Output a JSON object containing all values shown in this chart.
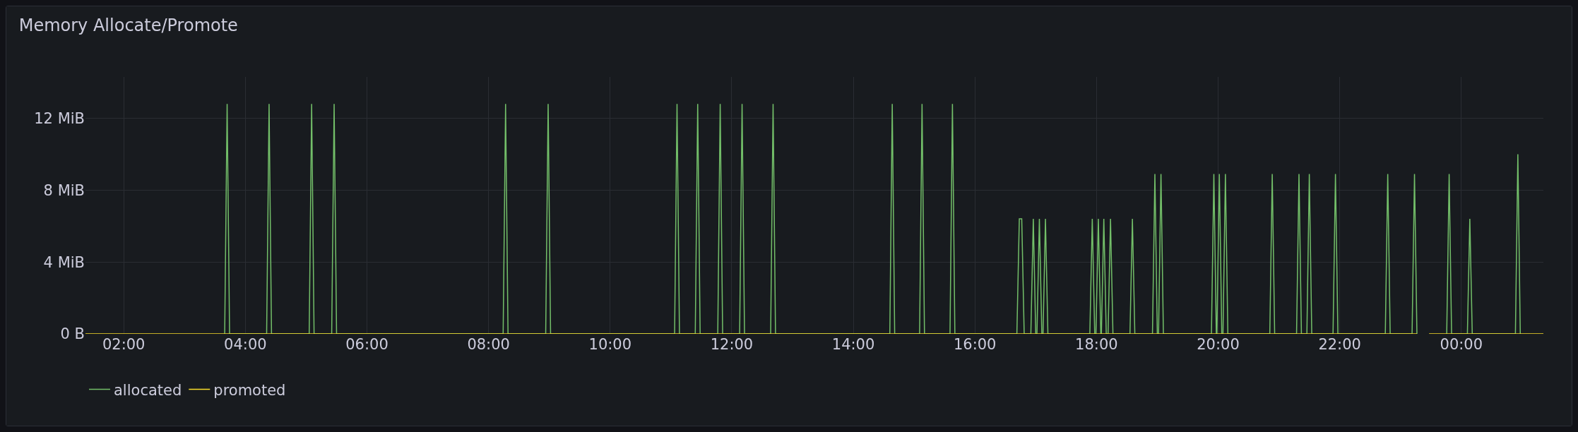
{
  "chart_data": {
    "type": "line",
    "title": "Memory Allocate/Promote",
    "xlim": [
      1.37,
      25.35
    ],
    "xticks": [
      {
        "value": 2,
        "label": "02:00"
      },
      {
        "value": 4,
        "label": "04:00"
      },
      {
        "value": 6,
        "label": "06:00"
      },
      {
        "value": 8,
        "label": "08:00"
      },
      {
        "value": 10,
        "label": "10:00"
      },
      {
        "value": 12,
        "label": "12:00"
      },
      {
        "value": 14,
        "label": "14:00"
      },
      {
        "value": 16,
        "label": "16:00"
      },
      {
        "value": 18,
        "label": "18:00"
      },
      {
        "value": 20,
        "label": "20:00"
      },
      {
        "value": 22,
        "label": "22:00"
      },
      {
        "value": 24,
        "label": "00:00"
      }
    ],
    "ylim": [
      0,
      14.3
    ],
    "yticks": [
      {
        "value": 0,
        "label": "0 B"
      },
      {
        "value": 4,
        "label": "4 MiB"
      },
      {
        "value": 8,
        "label": "8 MiB"
      },
      {
        "value": 12,
        "label": "12 MiB"
      }
    ],
    "grid": true,
    "legend": "bottom left",
    "marker": "none",
    "line_style": "solid",
    "series": [
      {
        "name": "allocated",
        "color": "#73bf69",
        "x": [
          3.66,
          3.7,
          3.74,
          4.35,
          4.39,
          4.43,
          5.05,
          5.09,
          5.13,
          5.42,
          5.46,
          5.5,
          8.24,
          8.28,
          8.32,
          8.94,
          8.98,
          9.02,
          11.06,
          11.1,
          11.14,
          11.4,
          11.44,
          11.48,
          11.77,
          11.81,
          11.85,
          12.13,
          12.17,
          12.21,
          12.64,
          12.68,
          12.72,
          14.6,
          14.64,
          14.68,
          15.09,
          15.13,
          15.17,
          15.59,
          15.63,
          15.67,
          16.69,
          16.73,
          16.77,
          16.81,
          16.92,
          16.96,
          17.0,
          17.02,
          17.06,
          17.1,
          17.12,
          17.16,
          17.2,
          17.89,
          17.93,
          17.97,
          17.99,
          18.03,
          18.07,
          18.08,
          18.12,
          18.16,
          18.19,
          18.23,
          18.27,
          18.55,
          18.59,
          18.63,
          18.92,
          18.96,
          19.0,
          19.02,
          19.06,
          19.1,
          19.89,
          19.93,
          19.97,
          19.98,
          20.02,
          20.06,
          20.08,
          20.12,
          20.16,
          20.85,
          20.89,
          20.93,
          21.29,
          21.33,
          21.37,
          21.46,
          21.5,
          21.54,
          21.89,
          21.93,
          21.97,
          22.75,
          22.79,
          22.83,
          23.19,
          23.23,
          23.27,
          23.38,
          23.76,
          23.8,
          23.84,
          24.1,
          24.14,
          24.18,
          24.89,
          24.93,
          24.97
        ],
        "values": [
          0,
          12.8,
          0,
          0,
          12.8,
          0,
          0,
          12.8,
          0,
          0,
          12.8,
          0,
          0,
          12.8,
          0,
          0,
          12.8,
          0,
          0,
          12.8,
          0,
          0,
          12.8,
          0,
          0,
          12.8,
          0,
          0,
          12.8,
          0,
          0,
          12.8,
          0,
          0,
          12.8,
          0,
          0,
          12.8,
          0,
          0,
          12.8,
          0,
          0,
          6.4,
          6.4,
          0,
          0,
          6.4,
          0,
          0,
          6.4,
          0,
          0,
          6.4,
          0,
          0,
          6.4,
          0,
          0,
          6.4,
          0,
          0,
          6.4,
          0,
          0,
          6.4,
          0,
          0,
          6.4,
          0,
          0,
          8.9,
          0,
          0,
          8.9,
          0,
          0,
          8.9,
          0,
          0,
          8.9,
          0,
          0,
          8.9,
          0,
          0,
          8.9,
          0,
          0,
          8.9,
          0,
          0,
          8.9,
          0,
          0,
          8.9,
          0,
          0,
          8.9,
          0,
          0,
          8.9,
          0,
          null,
          0,
          8.9,
          0,
          0,
          6.4,
          0,
          0,
          10,
          0
        ]
      },
      {
        "name": "promoted",
        "color": "#fade2a",
        "x": [
          1.37,
          23.27,
          23.38,
          23.47,
          25.35
        ],
        "values": [
          0,
          0,
          null,
          0,
          0
        ]
      }
    ]
  }
}
